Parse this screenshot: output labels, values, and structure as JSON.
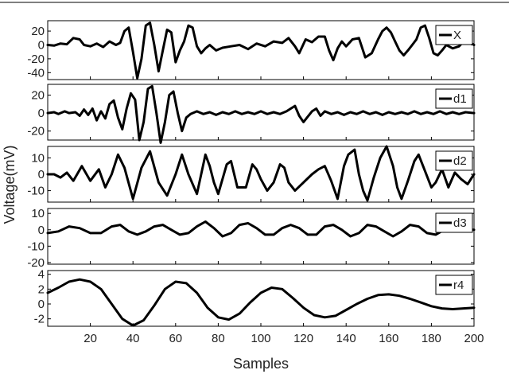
{
  "chart_data": {
    "type": "line",
    "xlabel": "Samples",
    "ylabel": "Voltage(mV)",
    "x_range": [
      0,
      200
    ],
    "x_ticks": [
      20,
      40,
      60,
      80,
      100,
      120,
      140,
      160,
      180,
      200
    ],
    "line_color": "#000000",
    "grid": false,
    "legend_position": "top-right",
    "panels": [
      {
        "name": "X",
        "ylim": [
          -50,
          35
        ],
        "y_ticks": [
          20,
          0,
          -20,
          -40
        ],
        "points": [
          [
            0,
            0
          ],
          [
            3,
            -1
          ],
          [
            6,
            2
          ],
          [
            9,
            1
          ],
          [
            12,
            10
          ],
          [
            15,
            8
          ],
          [
            17,
            0
          ],
          [
            20,
            -2
          ],
          [
            23,
            2
          ],
          [
            26,
            -3
          ],
          [
            29,
            5
          ],
          [
            32,
            0
          ],
          [
            34,
            3
          ],
          [
            36,
            20
          ],
          [
            38,
            25
          ],
          [
            40,
            -10
          ],
          [
            42,
            -48
          ],
          [
            44,
            -20
          ],
          [
            46,
            28
          ],
          [
            48,
            32
          ],
          [
            50,
            0
          ],
          [
            52,
            -38
          ],
          [
            54,
            -8
          ],
          [
            56,
            22
          ],
          [
            58,
            18
          ],
          [
            60,
            -25
          ],
          [
            62,
            -8
          ],
          [
            64,
            5
          ],
          [
            66,
            28
          ],
          [
            68,
            25
          ],
          [
            70,
            -2
          ],
          [
            72,
            -12
          ],
          [
            74,
            -5
          ],
          [
            76,
            0
          ],
          [
            79,
            -8
          ],
          [
            82,
            -4
          ],
          [
            86,
            -2
          ],
          [
            90,
            0
          ],
          [
            94,
            -6
          ],
          [
            98,
            2
          ],
          [
            102,
            -2
          ],
          [
            106,
            5
          ],
          [
            110,
            3
          ],
          [
            113,
            10
          ],
          [
            116,
            -2
          ],
          [
            118,
            -12
          ],
          [
            121,
            8
          ],
          [
            124,
            4
          ],
          [
            127,
            12
          ],
          [
            130,
            12
          ],
          [
            132,
            -8
          ],
          [
            134,
            -22
          ],
          [
            136,
            -5
          ],
          [
            138,
            5
          ],
          [
            140,
            -2
          ],
          [
            143,
            8
          ],
          [
            146,
            10
          ],
          [
            149,
            -18
          ],
          [
            152,
            -12
          ],
          [
            155,
            8
          ],
          [
            157,
            20
          ],
          [
            159,
            25
          ],
          [
            161,
            18
          ],
          [
            163,
            5
          ],
          [
            165,
            -8
          ],
          [
            167,
            -15
          ],
          [
            169,
            -8
          ],
          [
            171,
            0
          ],
          [
            173,
            8
          ],
          [
            175,
            25
          ],
          [
            177,
            28
          ],
          [
            179,
            10
          ],
          [
            181,
            -12
          ],
          [
            183,
            -15
          ],
          [
            185,
            -8
          ],
          [
            187,
            0
          ],
          [
            190,
            -5
          ],
          [
            193,
            -2
          ],
          [
            196,
            8
          ],
          [
            199,
            2
          ],
          [
            200,
            0
          ]
        ]
      },
      {
        "name": "d1",
        "ylim": [
          -30,
          32
        ],
        "y_ticks": [
          20,
          0,
          -20
        ],
        "points": [
          [
            0,
            0
          ],
          [
            3,
            1
          ],
          [
            5,
            -1
          ],
          [
            8,
            2
          ],
          [
            10,
            0
          ],
          [
            13,
            1
          ],
          [
            15,
            -3
          ],
          [
            17,
            4
          ],
          [
            19,
            -2
          ],
          [
            21,
            5
          ],
          [
            23,
            -8
          ],
          [
            25,
            2
          ],
          [
            27,
            -6
          ],
          [
            29,
            10
          ],
          [
            31,
            14
          ],
          [
            33,
            -5
          ],
          [
            35,
            -18
          ],
          [
            37,
            5
          ],
          [
            39,
            22
          ],
          [
            41,
            15
          ],
          [
            43,
            -30
          ],
          [
            45,
            -10
          ],
          [
            47,
            27
          ],
          [
            49,
            30
          ],
          [
            51,
            0
          ],
          [
            53,
            -33
          ],
          [
            55,
            -10
          ],
          [
            57,
            20
          ],
          [
            59,
            24
          ],
          [
            61,
            0
          ],
          [
            63,
            -20
          ],
          [
            65,
            -5
          ],
          [
            67,
            -1
          ],
          [
            70,
            2
          ],
          [
            73,
            -1
          ],
          [
            76,
            1
          ],
          [
            79,
            -2
          ],
          [
            82,
            1
          ],
          [
            85,
            -1
          ],
          [
            88,
            2
          ],
          [
            91,
            -1
          ],
          [
            94,
            1
          ],
          [
            97,
            -1
          ],
          [
            100,
            2
          ],
          [
            103,
            -1
          ],
          [
            106,
            1
          ],
          [
            109,
            -1
          ],
          [
            112,
            2
          ],
          [
            114,
            5
          ],
          [
            116,
            8
          ],
          [
            118,
            -3
          ],
          [
            120,
            -10
          ],
          [
            122,
            -4
          ],
          [
            124,
            2
          ],
          [
            126,
            5
          ],
          [
            128,
            -3
          ],
          [
            130,
            2
          ],
          [
            133,
            -1
          ],
          [
            136,
            1
          ],
          [
            139,
            -2
          ],
          [
            142,
            1
          ],
          [
            145,
            -1
          ],
          [
            148,
            2
          ],
          [
            151,
            -1
          ],
          [
            154,
            1
          ],
          [
            157,
            -2
          ],
          [
            160,
            1
          ],
          [
            163,
            -1
          ],
          [
            166,
            1
          ],
          [
            169,
            -1
          ],
          [
            172,
            2
          ],
          [
            175,
            -1
          ],
          [
            178,
            1
          ],
          [
            181,
            -1
          ],
          [
            184,
            2
          ],
          [
            187,
            -1
          ],
          [
            190,
            1
          ],
          [
            193,
            -1
          ],
          [
            196,
            1
          ],
          [
            200,
            0
          ]
        ]
      },
      {
        "name": "d2",
        "ylim": [
          -17,
          17
        ],
        "y_ticks": [
          10,
          0,
          -10
        ],
        "points": [
          [
            0,
            0
          ],
          [
            3,
            0
          ],
          [
            6,
            -2
          ],
          [
            9,
            1
          ],
          [
            12,
            -4
          ],
          [
            16,
            5
          ],
          [
            20,
            -4
          ],
          [
            24,
            3
          ],
          [
            27,
            -8
          ],
          [
            30,
            0
          ],
          [
            33,
            12
          ],
          [
            36,
            4
          ],
          [
            40,
            -15
          ],
          [
            44,
            4
          ],
          [
            48,
            14
          ],
          [
            52,
            -5
          ],
          [
            56,
            -13
          ],
          [
            60,
            0
          ],
          [
            63,
            12
          ],
          [
            66,
            0
          ],
          [
            70,
            -12
          ],
          [
            74,
            12
          ],
          [
            76,
            5
          ],
          [
            78,
            -5
          ],
          [
            80,
            -12
          ],
          [
            84,
            6
          ],
          [
            86,
            8
          ],
          [
            89,
            -8
          ],
          [
            93,
            -8
          ],
          [
            96,
            6
          ],
          [
            98,
            3
          ],
          [
            100,
            -3
          ],
          [
            103,
            -10
          ],
          [
            106,
            -5
          ],
          [
            109,
            6
          ],
          [
            111,
            4
          ],
          [
            113,
            -5
          ],
          [
            116,
            -10
          ],
          [
            120,
            -5
          ],
          [
            124,
            0
          ],
          [
            127,
            3
          ],
          [
            130,
            5
          ],
          [
            133,
            -4
          ],
          [
            136,
            -15
          ],
          [
            139,
            5
          ],
          [
            141,
            12
          ],
          [
            144,
            15
          ],
          [
            146,
            0
          ],
          [
            148,
            -10
          ],
          [
            150,
            -16
          ],
          [
            153,
            -2
          ],
          [
            156,
            10
          ],
          [
            159,
            17
          ],
          [
            162,
            5
          ],
          [
            164,
            -8
          ],
          [
            166,
            -15
          ],
          [
            169,
            -4
          ],
          [
            172,
            8
          ],
          [
            174,
            12
          ],
          [
            177,
            2
          ],
          [
            180,
            -8
          ],
          [
            182,
            -5
          ],
          [
            185,
            3
          ],
          [
            188,
            -8
          ],
          [
            191,
            1
          ],
          [
            194,
            -3
          ],
          [
            197,
            -6
          ],
          [
            200,
            0
          ]
        ]
      },
      {
        "name": "d3",
        "ylim": [
          -21,
          13
        ],
        "y_ticks": [
          10,
          0,
          -10,
          -20
        ],
        "points": [
          [
            0,
            -2
          ],
          [
            5,
            -1
          ],
          [
            10,
            2
          ],
          [
            15,
            1
          ],
          [
            20,
            -2
          ],
          [
            25,
            -2
          ],
          [
            30,
            2
          ],
          [
            34,
            3
          ],
          [
            38,
            -1
          ],
          [
            42,
            -3
          ],
          [
            46,
            -1
          ],
          [
            50,
            2
          ],
          [
            54,
            3
          ],
          [
            58,
            0
          ],
          [
            62,
            -3
          ],
          [
            66,
            -2
          ],
          [
            70,
            2
          ],
          [
            74,
            5
          ],
          [
            78,
            1
          ],
          [
            82,
            -4
          ],
          [
            86,
            -2
          ],
          [
            90,
            3
          ],
          [
            94,
            4
          ],
          [
            98,
            1
          ],
          [
            102,
            -3
          ],
          [
            106,
            -3
          ],
          [
            110,
            1
          ],
          [
            114,
            3
          ],
          [
            118,
            1
          ],
          [
            122,
            -3
          ],
          [
            126,
            -3
          ],
          [
            130,
            2
          ],
          [
            134,
            3
          ],
          [
            138,
            0
          ],
          [
            142,
            -4
          ],
          [
            146,
            -2
          ],
          [
            150,
            3
          ],
          [
            154,
            2
          ],
          [
            158,
            -1
          ],
          [
            162,
            -4
          ],
          [
            166,
            -1
          ],
          [
            170,
            3
          ],
          [
            174,
            2
          ],
          [
            178,
            -2
          ],
          [
            182,
            -3
          ],
          [
            186,
            0
          ],
          [
            190,
            3
          ],
          [
            194,
            2
          ],
          [
            198,
            0
          ],
          [
            200,
            0
          ]
        ]
      },
      {
        "name": "r4",
        "ylim": [
          -3,
          4.5
        ],
        "y_ticks": [
          4,
          2,
          0,
          -2
        ],
        "points": [
          [
            0,
            1.5
          ],
          [
            5,
            2.2
          ],
          [
            10,
            3
          ],
          [
            15,
            3.3
          ],
          [
            20,
            3
          ],
          [
            25,
            2
          ],
          [
            30,
            0
          ],
          [
            35,
            -2
          ],
          [
            40,
            -2.9
          ],
          [
            45,
            -2.2
          ],
          [
            50,
            -0.2
          ],
          [
            55,
            2
          ],
          [
            60,
            3
          ],
          [
            65,
            2.8
          ],
          [
            70,
            1.5
          ],
          [
            75,
            -0.5
          ],
          [
            80,
            -1.8
          ],
          [
            85,
            -2.1
          ],
          [
            90,
            -1.3
          ],
          [
            95,
            0.2
          ],
          [
            100,
            1.5
          ],
          [
            105,
            2.2
          ],
          [
            110,
            2
          ],
          [
            115,
            0.8
          ],
          [
            120,
            -0.5
          ],
          [
            125,
            -1.5
          ],
          [
            130,
            -1.8
          ],
          [
            135,
            -1.6
          ],
          [
            140,
            -0.8
          ],
          [
            145,
            0
          ],
          [
            150,
            0.7
          ],
          [
            155,
            1.2
          ],
          [
            160,
            1.3
          ],
          [
            165,
            1.1
          ],
          [
            170,
            0.7
          ],
          [
            175,
            0.2
          ],
          [
            180,
            -0.3
          ],
          [
            185,
            -0.6
          ],
          [
            190,
            -0.7
          ],
          [
            195,
            -0.6
          ],
          [
            200,
            -0.5
          ]
        ]
      }
    ]
  }
}
